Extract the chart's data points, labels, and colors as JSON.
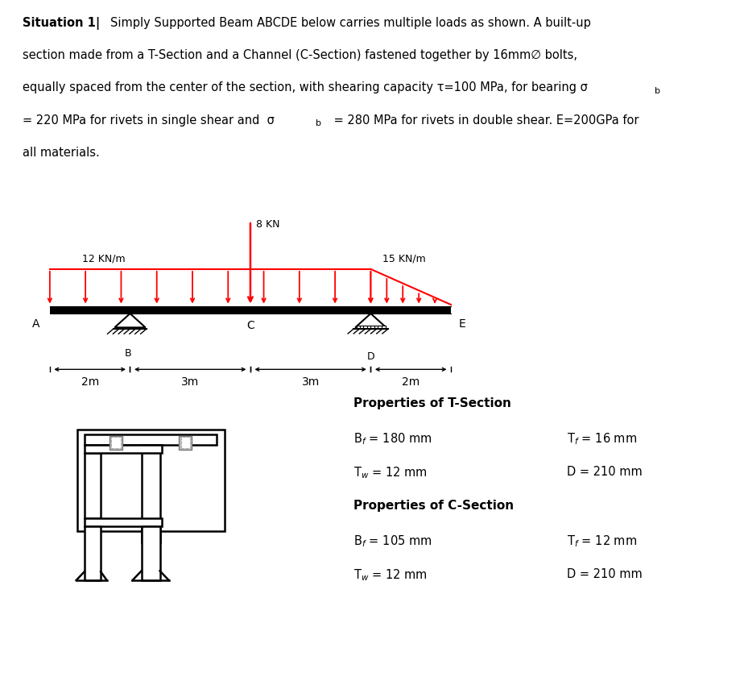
{
  "bg_color": "#ffffff",
  "load_color": "#ff0000",
  "beam_color": "#000000",
  "udl_label_left": "12 KN/m",
  "point_load_label": "8 KN",
  "udl_label_right": "15 KN/m",
  "spans": [
    "2m",
    "3m",
    "3m",
    "2m"
  ],
  "props_t_title": "Properties of T-Section",
  "props_c_title": "Properties of C-Section"
}
